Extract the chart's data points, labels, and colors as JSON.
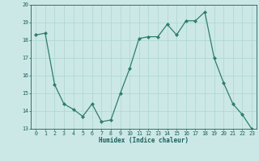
{
  "x": [
    0,
    1,
    2,
    3,
    4,
    5,
    6,
    7,
    8,
    9,
    10,
    11,
    12,
    13,
    14,
    15,
    16,
    17,
    18,
    19,
    20,
    21,
    22,
    23
  ],
  "y": [
    18.3,
    18.4,
    15.5,
    14.4,
    14.1,
    13.7,
    14.4,
    13.4,
    13.5,
    15.0,
    16.4,
    18.1,
    18.2,
    18.2,
    18.9,
    18.3,
    19.1,
    19.1,
    19.6,
    17.0,
    15.6,
    14.4,
    13.8,
    13.0
  ],
  "xlabel": "Humidex (Indice chaleur)",
  "ylim": [
    13,
    20
  ],
  "yticks": [
    13,
    14,
    15,
    16,
    17,
    18,
    19,
    20
  ],
  "xticks": [
    0,
    1,
    2,
    3,
    4,
    5,
    6,
    7,
    8,
    9,
    10,
    11,
    12,
    13,
    14,
    15,
    16,
    17,
    18,
    19,
    20,
    21,
    22,
    23
  ],
  "line_color": "#2e7d6e",
  "marker_color": "#2e7d6e",
  "bg_color": "#cce8e6",
  "grid_color": "#b0d8d5",
  "text_color": "#1a5f5a",
  "xlabel_fontsize": 5.5,
  "tick_fontsize": 4.8
}
